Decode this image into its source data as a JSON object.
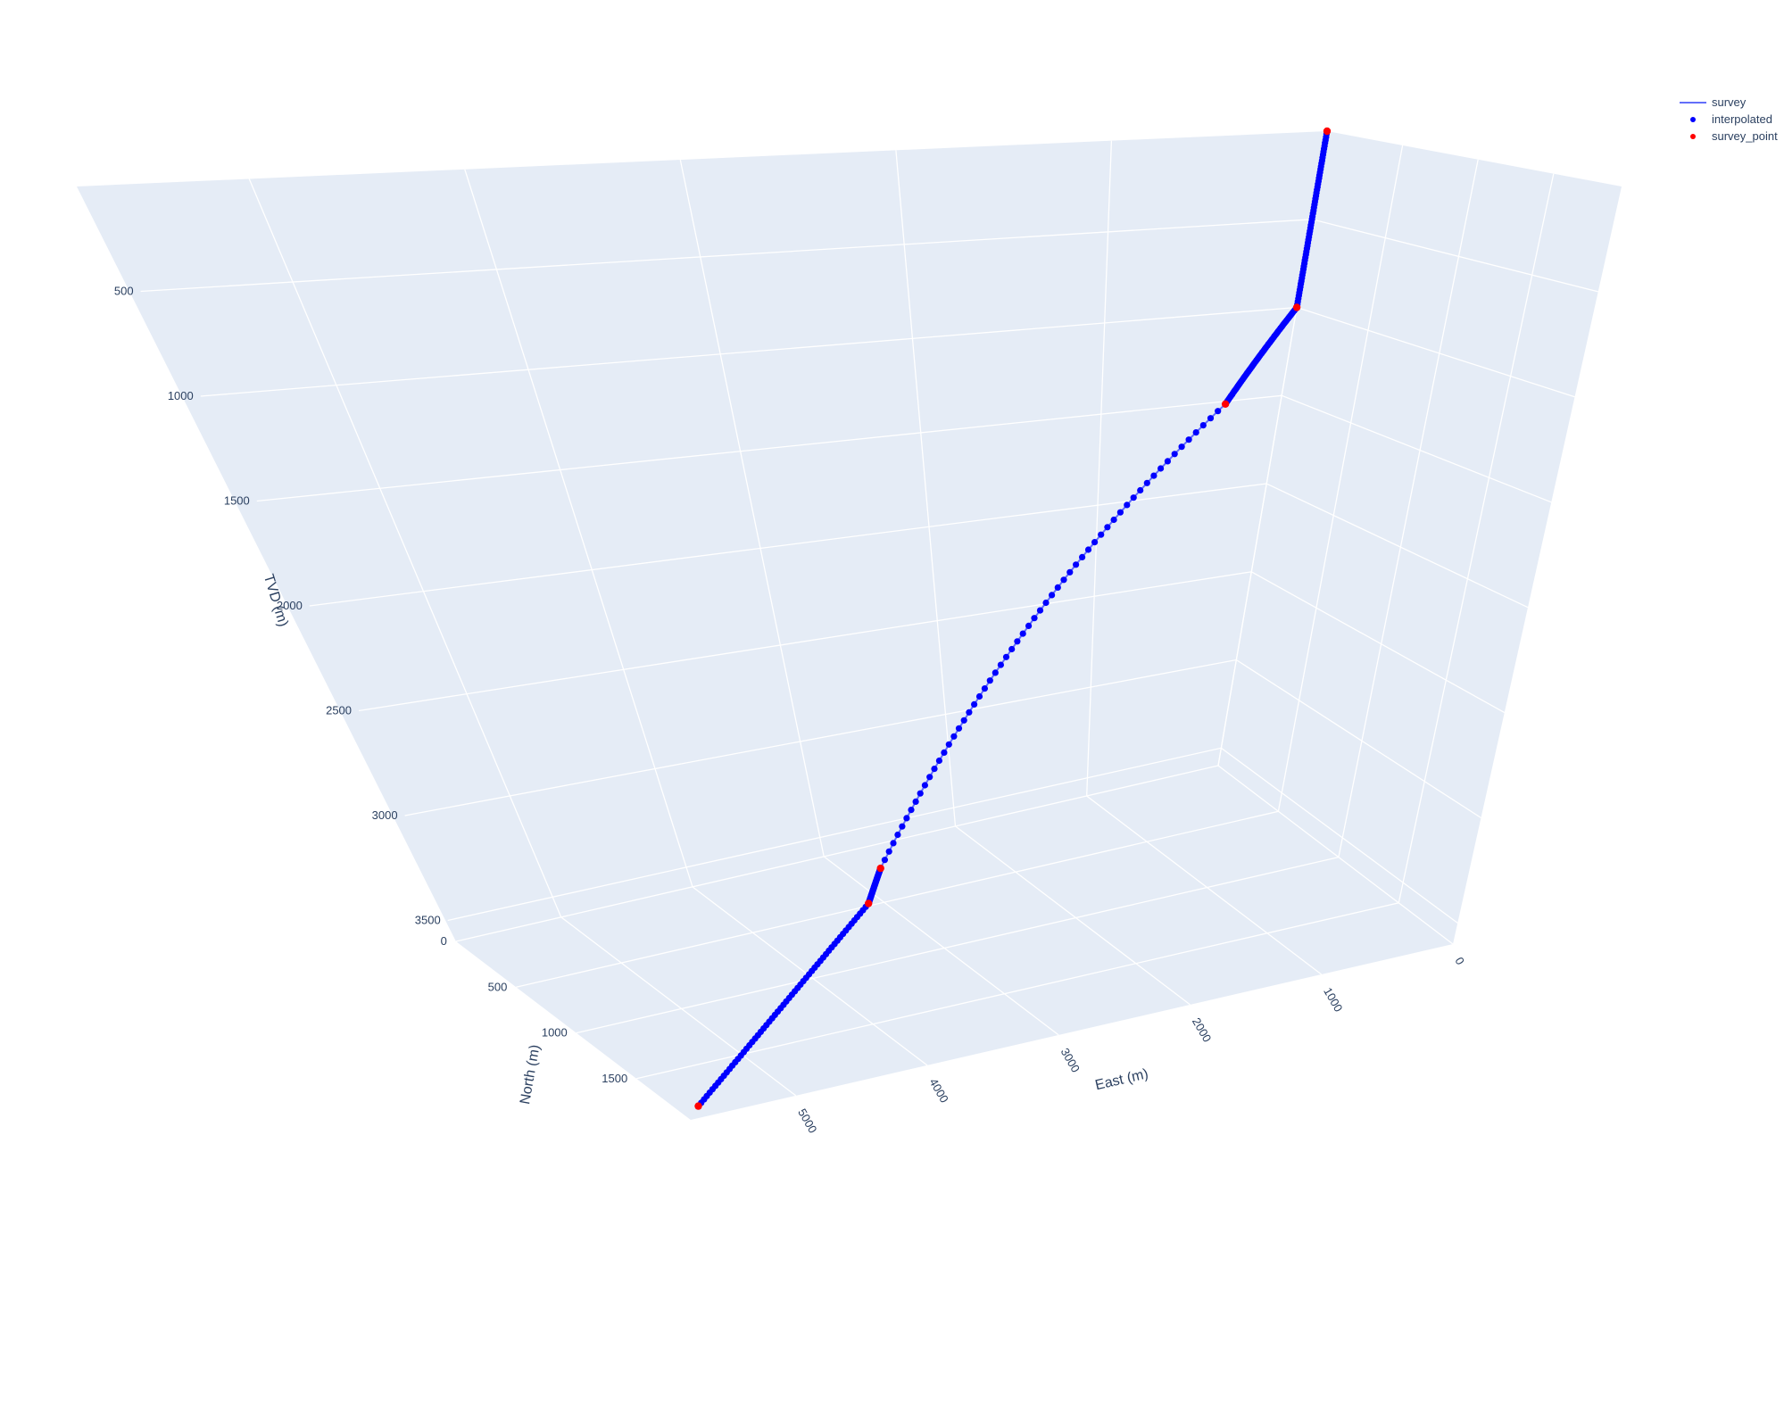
{
  "chart_data": {
    "type": "scatter3d",
    "axes": {
      "x": {
        "title": "East (m)",
        "ticks": [
          0,
          1000,
          2000,
          3000,
          4000,
          5000
        ],
        "range": [
          0,
          5800
        ]
      },
      "y": {
        "title": "North (m)",
        "ticks": [
          0,
          500,
          1000,
          1500
        ],
        "range": [
          0,
          1950
        ]
      },
      "z": {
        "title": "TVD (m)",
        "ticks": [
          500,
          1000,
          1500,
          2000,
          2500,
          3000,
          3500
        ],
        "range": [
          0,
          3600
        ],
        "reversed": true
      }
    },
    "grid": true,
    "legend": {
      "position": "top-right",
      "entries": [
        {
          "name": "survey",
          "symbol": "line",
          "color": "#636efa"
        },
        {
          "name": "interpolated",
          "symbol": "dot",
          "color": "#0000ff"
        },
        {
          "name": "survey_point",
          "symbol": "dot",
          "color": "#ff0000"
        }
      ]
    },
    "series": [
      {
        "name": "survey_point",
        "color": "#ff0000",
        "points": [
          {
            "east": 0,
            "north": 0,
            "tvd": 0
          },
          {
            "east": 0,
            "north": 0,
            "tvd": 1000
          },
          {
            "east": 350,
            "north": 40,
            "tvd": 1500
          },
          {
            "east": 2900,
            "north": 380,
            "tvd": 3500
          },
          {
            "east": 3100,
            "north": 480,
            "tvd": 3600
          },
          {
            "east": 5650,
            "north": 1850,
            "tvd": 3600
          }
        ]
      },
      {
        "name": "interpolated",
        "color": "#0000ff"
      },
      {
        "name": "survey",
        "color": "#636efa"
      }
    ]
  }
}
